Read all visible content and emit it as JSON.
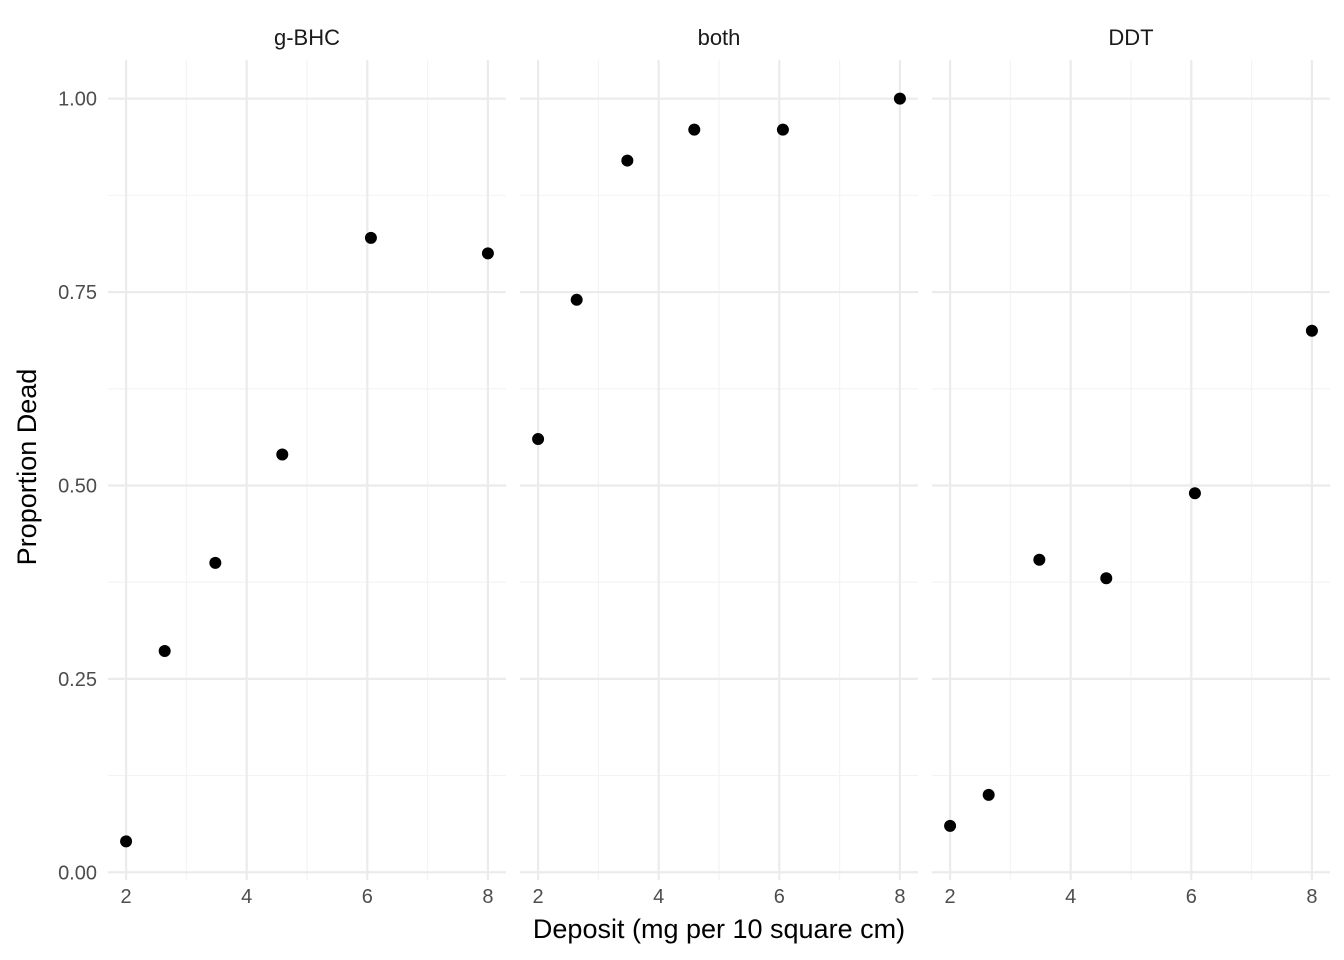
{
  "chart_data": {
    "type": "scatter",
    "facet_by": "insecticide",
    "xlabel": "Deposit (mg per 10 square cm)",
    "ylabel": "Proportion Dead",
    "xlim": [
      1.7,
      8.3
    ],
    "ylim": [
      -0.01,
      1.05
    ],
    "x_ticks": [
      2,
      4,
      6,
      8
    ],
    "y_ticks": [
      0.0,
      0.25,
      0.5,
      0.75,
      1.0
    ],
    "y_tick_labels": [
      "0.00",
      "0.25",
      "0.50",
      "0.75",
      "1.00"
    ],
    "grid": true,
    "legend": "none",
    "point_color": "#000000",
    "facets": [
      {
        "name": "g-BHC",
        "x": [
          2.0,
          2.64,
          3.48,
          4.59,
          6.06,
          8.0
        ],
        "y": [
          0.04,
          0.286,
          0.4,
          0.54,
          0.82,
          0.8
        ]
      },
      {
        "name": "both",
        "x": [
          2.0,
          2.64,
          3.48,
          4.59,
          6.06,
          8.0
        ],
        "y": [
          0.56,
          0.74,
          0.92,
          0.96,
          0.96,
          1.0
        ]
      },
      {
        "name": "DDT",
        "x": [
          2.0,
          2.64,
          3.48,
          4.59,
          6.06,
          8.0
        ],
        "y": [
          0.06,
          0.1,
          0.404,
          0.38,
          0.49,
          0.7
        ]
      }
    ]
  }
}
